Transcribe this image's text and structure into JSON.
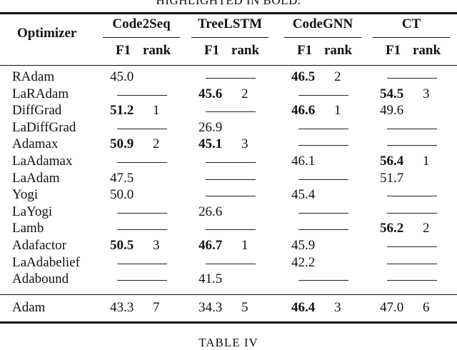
{
  "top_caption": "HIGHLIGHTED IN BOLD.",
  "header": {
    "optimizer": "Optimizer",
    "groups": [
      "Code2Seq",
      "TreeLSTM",
      "CodeGNN",
      "CT"
    ],
    "f1": "F1",
    "rank": "rank"
  },
  "rows": [
    {
      "name": "RAdam",
      "cells": [
        {
          "f1": "45.0",
          "bold": false,
          "rank": ""
        },
        null,
        {
          "f1": "46.5",
          "bold": true,
          "rank": "2"
        },
        null
      ]
    },
    {
      "name": "LaRAdam",
      "cells": [
        null,
        {
          "f1": "45.6",
          "bold": true,
          "rank": "2"
        },
        null,
        {
          "f1": "54.5",
          "bold": true,
          "rank": "3"
        }
      ]
    },
    {
      "name": "DiffGrad",
      "cells": [
        {
          "f1": "51.2",
          "bold": true,
          "rank": "1"
        },
        null,
        {
          "f1": "46.6",
          "bold": true,
          "rank": "1"
        },
        {
          "f1": "49.6",
          "bold": false,
          "rank": ""
        }
      ]
    },
    {
      "name": "LaDiffGrad",
      "cells": [
        null,
        {
          "f1": "26.9",
          "bold": false,
          "rank": ""
        },
        null,
        null
      ]
    },
    {
      "name": "Adamax",
      "cells": [
        {
          "f1": "50.9",
          "bold": true,
          "rank": "2"
        },
        {
          "f1": "45.1",
          "bold": true,
          "rank": "3"
        },
        null,
        null
      ]
    },
    {
      "name": "LaAdamax",
      "cells": [
        null,
        null,
        {
          "f1": "46.1",
          "bold": false,
          "rank": ""
        },
        {
          "f1": "56.4",
          "bold": true,
          "rank": "1"
        }
      ]
    },
    {
      "name": "LaAdam",
      "cells": [
        {
          "f1": "47.5",
          "bold": false,
          "rank": ""
        },
        null,
        null,
        {
          "f1": "51.7",
          "bold": false,
          "rank": ""
        }
      ]
    },
    {
      "name": "Yogi",
      "cells": [
        {
          "f1": "50.0",
          "bold": false,
          "rank": ""
        },
        null,
        {
          "f1": "45.4",
          "bold": false,
          "rank": ""
        },
        null
      ]
    },
    {
      "name": "LaYogi",
      "cells": [
        null,
        {
          "f1": "26.6",
          "bold": false,
          "rank": ""
        },
        null,
        null
      ]
    },
    {
      "name": "Lamb",
      "cells": [
        null,
        null,
        null,
        {
          "f1": "56.2",
          "bold": true,
          "rank": "2"
        }
      ]
    },
    {
      "name": "Adafactor",
      "cells": [
        {
          "f1": "50.5",
          "bold": true,
          "rank": "3"
        },
        {
          "f1": "46.7",
          "bold": true,
          "rank": "1"
        },
        {
          "f1": "45.9",
          "bold": false,
          "rank": ""
        },
        null
      ]
    },
    {
      "name": "LaAdabelief",
      "cells": [
        null,
        null,
        {
          "f1": "42.2",
          "bold": false,
          "rank": ""
        },
        null
      ]
    },
    {
      "name": "Adabound",
      "cells": [
        null,
        {
          "f1": "41.5",
          "bold": false,
          "rank": ""
        },
        null,
        null
      ]
    }
  ],
  "baseline": {
    "name": "Adam",
    "cells": [
      {
        "f1": "43.3",
        "bold": false,
        "rank": "7"
      },
      {
        "f1": "34.3",
        "bold": false,
        "rank": "5"
      },
      {
        "f1": "46.4",
        "bold": true,
        "rank": "3"
      },
      {
        "f1": "47.0",
        "bold": false,
        "rank": "6"
      }
    ]
  },
  "table_caption": "TABLE IV"
}
